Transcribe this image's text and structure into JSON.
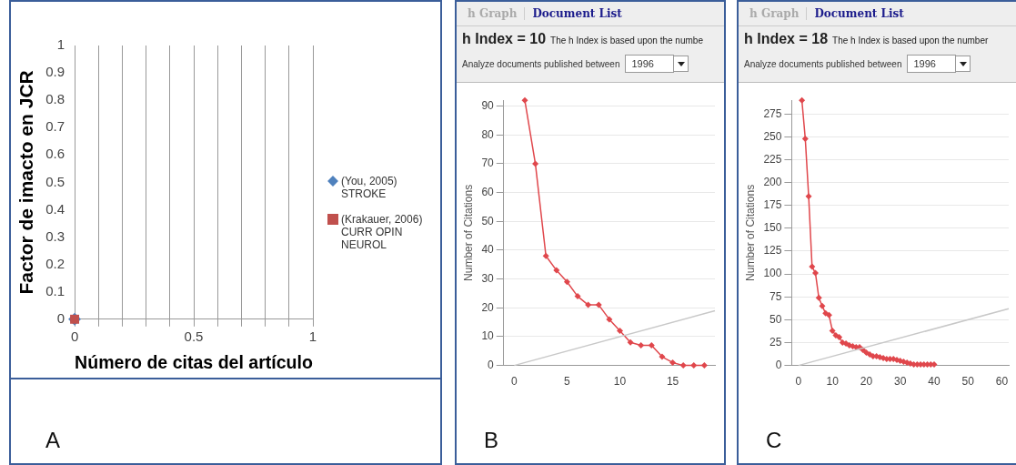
{
  "chart_data": [
    {
      "type": "scatter",
      "xlabel": "Número de citas del artículo",
      "ylabel": "Factor de imacto en JCR",
      "xlim": [
        0,
        1
      ],
      "ylim": [
        0,
        1
      ],
      "xticks": [
        0,
        {
          "value": 0.1,
          "label": null
        },
        {
          "value": 0.2,
          "label": null
        },
        {
          "value": 0.3,
          "label": null
        },
        {
          "value": 0.4,
          "label": null
        },
        0.5,
        {
          "value": 0.6,
          "label": null
        },
        {
          "value": 0.7,
          "label": null
        },
        {
          "value": 0.8,
          "label": null
        },
        {
          "value": 0.9,
          "label": null
        },
        1
      ],
      "yticks": [
        0,
        0.1,
        0.2,
        0.3,
        0.4,
        0.5,
        0.6,
        0.7,
        0.8,
        0.9,
        1
      ],
      "grid": "x",
      "legend": "right",
      "series": [
        {
          "name": "(You, 2005) STROKE",
          "color": "#4f81bd",
          "marker": "diamond",
          "x": [
            0
          ],
          "values": [
            0
          ]
        },
        {
          "name": "(Krakauer, 2006) CURR OPIN NEUROL",
          "color": "#c0504d",
          "marker": "square",
          "x": [
            0
          ],
          "values": [
            0
          ]
        }
      ],
      "annotations": [
        "A"
      ]
    },
    {
      "type": "line",
      "ylabel": "Number of Citations",
      "xlim": [
        -1,
        19
      ],
      "ylim": [
        0,
        92
      ],
      "xticks": [
        0,
        5,
        10,
        15
      ],
      "yticks": [
        0,
        10,
        20,
        30,
        40,
        50,
        60,
        70,
        80,
        90
      ],
      "grid": "y",
      "marker": "diamond",
      "series": [
        {
          "color": "#e0474c",
          "x": [
            1,
            2,
            3,
            4,
            5,
            6,
            7,
            8,
            9,
            10,
            11,
            12,
            13,
            14,
            15,
            16,
            17,
            18
          ],
          "values": [
            92,
            70,
            38,
            33,
            29,
            24,
            21,
            21,
            16,
            12,
            8,
            7,
            7,
            3,
            1,
            0,
            0,
            0
          ]
        },
        {
          "type": "line",
          "color": "#c8c8c8",
          "marker": "none",
          "x": [
            0,
            19
          ],
          "values": [
            0,
            19
          ]
        }
      ],
      "annotations": [
        "h Graph",
        "Document List",
        "h Index = 10",
        "The h Index is based upon the numbe",
        "Analyze documents published between",
        "1996",
        "B"
      ]
    },
    {
      "type": "line",
      "ylabel": "Number of Citations",
      "xlim": [
        -2,
        62
      ],
      "ylim": [
        0,
        290
      ],
      "xticks": [
        0,
        10,
        20,
        30,
        40,
        50,
        60
      ],
      "yticks": [
        0,
        25,
        50,
        75,
        100,
        125,
        150,
        175,
        200,
        225,
        250,
        275
      ],
      "grid": "y",
      "marker": "diamond",
      "series": [
        {
          "color": "#e0474c",
          "x": [
            1,
            2,
            3,
            4,
            5,
            6,
            7,
            8,
            9,
            10,
            11,
            12,
            13,
            14,
            15,
            16,
            17,
            18,
            19,
            20,
            21,
            22,
            23,
            24,
            25,
            26,
            27,
            28,
            29,
            30,
            31,
            32,
            33,
            34,
            35,
            36,
            37,
            38,
            39,
            40
          ],
          "values": [
            290,
            248,
            185,
            108,
            101,
            74,
            65,
            57,
            55,
            38,
            33,
            31,
            25,
            24,
            22,
            21,
            20,
            20,
            17,
            14,
            12,
            10,
            10,
            9,
            8,
            7,
            7,
            7,
            6,
            5,
            4,
            3,
            2,
            1,
            1,
            1,
            1,
            1,
            1,
            1
          ]
        },
        {
          "type": "line",
          "color": "#c8c8c8",
          "marker": "none",
          "x": [
            0,
            62
          ],
          "values": [
            0,
            62
          ]
        }
      ],
      "annotations": [
        "h Graph",
        "Document List",
        "h Index = 18",
        "The h Index is based upon the number",
        "Analyze documents published between",
        "1996",
        "C"
      ]
    }
  ]
}
